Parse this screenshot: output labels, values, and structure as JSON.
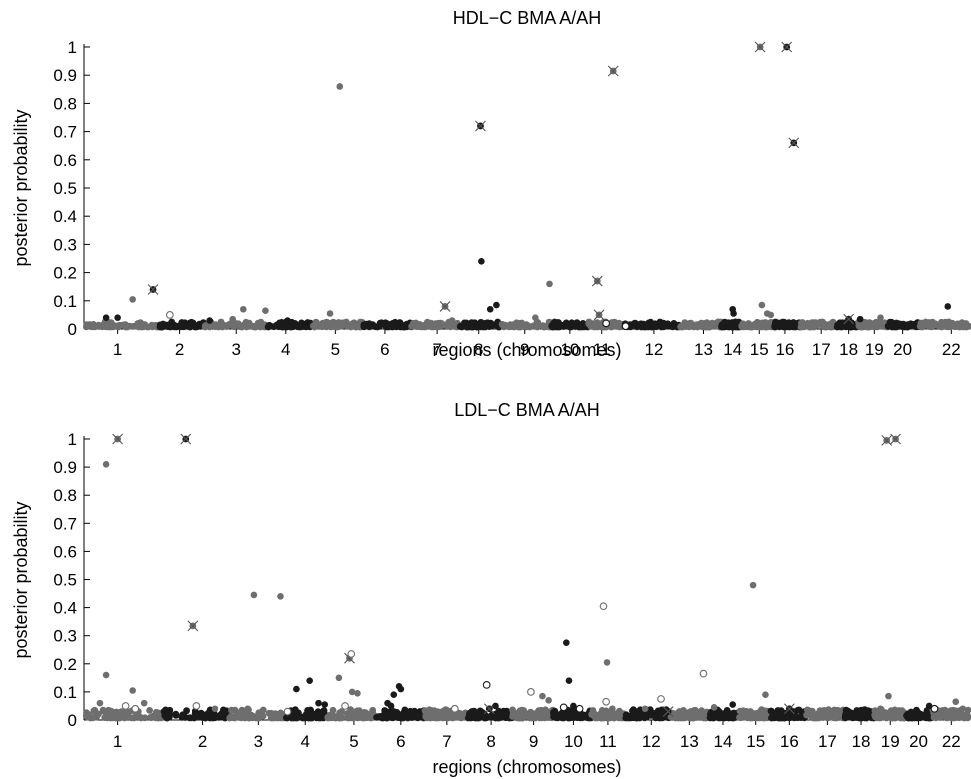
{
  "chart_data": [
    {
      "type": "scatter",
      "title": "HDL−C BMA A/AH",
      "xlabel": "regions (chromosomes)",
      "ylabel": "posterior probability",
      "ylim": [
        0,
        1
      ],
      "yticks": [
        "0",
        "0.1",
        "0.2",
        "0.3",
        "0.4",
        "0.5",
        "0.6",
        "0.7",
        "0.8",
        "0.9",
        "1"
      ],
      "xlim": [
        0,
        1000
      ],
      "chromosomes": {
        "labels": [
          "1",
          "2",
          "3",
          "4",
          "5",
          "6",
          "7",
          "8",
          "9",
          "10",
          "11",
          "12",
          "13",
          "14",
          "15",
          "16",
          "17",
          "18",
          "19",
          "20",
          "22"
        ],
        "label_x": [
          38,
          108,
          172,
          228,
          284,
          340,
          399,
          446,
          498,
          549,
          585,
          644,
          700,
          733,
          763,
          792,
          833,
          864,
          893,
          925,
          980
        ],
        "bounds": [
          0,
          85,
          135,
          208,
          258,
          315,
          370,
          425,
          471,
          528,
          570,
          610,
          673,
          720,
          742,
          780,
          810,
          851,
          875,
          908,
          944,
          1000
        ]
      },
      "color_cycle": [
        "#6e6e6e",
        "#1a1a1a"
      ],
      "background_noise": {
        "n_per_chrom": 60,
        "ymax": 0.018
      },
      "points": [
        {
          "x": 25,
          "y": 0.04,
          "c": 1
        },
        {
          "x": 38,
          "y": 0.04,
          "c": 1
        },
        {
          "x": 55,
          "y": 0.105,
          "c": 0
        },
        {
          "x": 78,
          "y": 0.14,
          "c": 1,
          "m": "x"
        },
        {
          "x": 97,
          "y": 0.05,
          "c": 0,
          "m": "o"
        },
        {
          "x": 142,
          "y": 0.03,
          "c": 1
        },
        {
          "x": 180,
          "y": 0.07,
          "c": 0
        },
        {
          "x": 205,
          "y": 0.065,
          "c": 0
        },
        {
          "x": 168,
          "y": 0.035,
          "c": 0
        },
        {
          "x": 230,
          "y": 0.03,
          "c": 1
        },
        {
          "x": 278,
          "y": 0.055,
          "c": 0
        },
        {
          "x": 289,
          "y": 0.86,
          "c": 0
        },
        {
          "x": 408,
          "y": 0.08,
          "c": 0,
          "m": "x"
        },
        {
          "x": 416,
          "y": 0.03,
          "c": 0
        },
        {
          "x": 448,
          "y": 0.72,
          "c": 1,
          "m": "x"
        },
        {
          "x": 449,
          "y": 0.24,
          "c": 1
        },
        {
          "x": 459,
          "y": 0.07,
          "c": 1
        },
        {
          "x": 466,
          "y": 0.085,
          "c": 1
        },
        {
          "x": 526,
          "y": 0.16,
          "c": 0
        },
        {
          "x": 510,
          "y": 0.04,
          "c": 0
        },
        {
          "x": 580,
          "y": 0.17,
          "c": 0,
          "m": "x"
        },
        {
          "x": 582,
          "y": 0.05,
          "c": 0,
          "m": "x"
        },
        {
          "x": 598,
          "y": 0.915,
          "c": 0,
          "m": "x"
        },
        {
          "x": 590,
          "y": 0.02,
          "c": 1,
          "m": "o"
        },
        {
          "x": 612,
          "y": 0.01,
          "c": 1,
          "m": "o"
        },
        {
          "x": 733,
          "y": 0.07,
          "c": 1
        },
        {
          "x": 734,
          "y": 0.055,
          "c": 1
        },
        {
          "x": 764,
          "y": 1.0,
          "c": 0,
          "m": "x"
        },
        {
          "x": 766,
          "y": 0.085,
          "c": 0
        },
        {
          "x": 772,
          "y": 0.055,
          "c": 0
        },
        {
          "x": 776,
          "y": 0.05,
          "c": 0
        },
        {
          "x": 794,
          "y": 1.0,
          "c": 1,
          "m": "x"
        },
        {
          "x": 802,
          "y": 0.66,
          "c": 1,
          "m": "x"
        },
        {
          "x": 864,
          "y": 0.035,
          "c": 1,
          "m": "x"
        },
        {
          "x": 877,
          "y": 0.035,
          "c": 1
        },
        {
          "x": 900,
          "y": 0.04,
          "c": 0
        },
        {
          "x": 976,
          "y": 0.08,
          "c": 1
        },
        {
          "x": 951,
          "y": 0.025,
          "c": 0
        }
      ]
    },
    {
      "type": "scatter",
      "title": "LDL−C BMA A/AH",
      "xlabel": "regions (chromosomes)",
      "ylabel": "posterior probability",
      "ylim": [
        0,
        1
      ],
      "yticks": [
        "0",
        "0.1",
        "0.2",
        "0.3",
        "0.4",
        "0.5",
        "0.6",
        "0.7",
        "0.8",
        "0.9",
        "1"
      ],
      "xlim": [
        0,
        1000
      ],
      "chromosomes": {
        "labels": [
          "1",
          "2",
          "3",
          "4",
          "5",
          "6",
          "7",
          "8",
          "9",
          "10",
          "11",
          "12",
          "13",
          "14",
          "15",
          "16",
          "17",
          "18",
          "19",
          "20",
          "22"
        ],
        "label_x": [
          38,
          134,
          197,
          250,
          305,
          358,
          410,
          460,
          508,
          553,
          592,
          641,
          684,
          722,
          759,
          797,
          840,
          878,
          911,
          943,
          980
        ],
        "bounds": [
          0,
          90,
          164,
          228,
          275,
          330,
          385,
          434,
          484,
          530,
          573,
          610,
          662,
          705,
          740,
          775,
          815,
          860,
          893,
          929,
          958,
          1000
        ]
      },
      "color_cycle": [
        "#6e6e6e",
        "#1a1a1a"
      ],
      "background_noise": {
        "n_per_chrom": 70,
        "ymax": 0.03
      },
      "points": [
        {
          "x": 25,
          "y": 0.91,
          "c": 0
        },
        {
          "x": 25,
          "y": 0.16,
          "c": 0
        },
        {
          "x": 38,
          "y": 1.0,
          "c": 0,
          "m": "x"
        },
        {
          "x": 47,
          "y": 0.05,
          "c": 0,
          "m": "o"
        },
        {
          "x": 55,
          "y": 0.105,
          "c": 0
        },
        {
          "x": 18,
          "y": 0.06,
          "c": 0
        },
        {
          "x": 68,
          "y": 0.06,
          "c": 0
        },
        {
          "x": 58,
          "y": 0.04,
          "c": 0,
          "m": "o"
        },
        {
          "x": 115,
          "y": 1.0,
          "c": 1,
          "m": "x"
        },
        {
          "x": 123,
          "y": 0.335,
          "c": 0,
          "m": "x"
        },
        {
          "x": 127,
          "y": 0.05,
          "c": 0,
          "m": "o"
        },
        {
          "x": 148,
          "y": 0.04,
          "c": 0
        },
        {
          "x": 192,
          "y": 0.445,
          "c": 0
        },
        {
          "x": 222,
          "y": 0.44,
          "c": 0
        },
        {
          "x": 185,
          "y": 0.04,
          "c": 0
        },
        {
          "x": 230,
          "y": 0.03,
          "c": 0,
          "m": "o"
        },
        {
          "x": 240,
          "y": 0.11,
          "c": 1
        },
        {
          "x": 255,
          "y": 0.14,
          "c": 1
        },
        {
          "x": 265,
          "y": 0.06,
          "c": 1
        },
        {
          "x": 272,
          "y": 0.055,
          "c": 1
        },
        {
          "x": 288,
          "y": 0.15,
          "c": 0
        },
        {
          "x": 300,
          "y": 0.22,
          "c": 0,
          "m": "x"
        },
        {
          "x": 302,
          "y": 0.235,
          "c": 0,
          "m": "o"
        },
        {
          "x": 303,
          "y": 0.1,
          "c": 0
        },
        {
          "x": 309,
          "y": 0.095,
          "c": 0
        },
        {
          "x": 295,
          "y": 0.05,
          "c": 0,
          "m": "o"
        },
        {
          "x": 343,
          "y": 0.06,
          "c": 1
        },
        {
          "x": 356,
          "y": 0.12,
          "c": 1
        },
        {
          "x": 358,
          "y": 0.11,
          "c": 1
        },
        {
          "x": 350,
          "y": 0.09,
          "c": 1
        },
        {
          "x": 347,
          "y": 0.05,
          "c": 1
        },
        {
          "x": 419,
          "y": 0.04,
          "c": 0,
          "m": "o"
        },
        {
          "x": 455,
          "y": 0.125,
          "c": 1,
          "m": "o"
        },
        {
          "x": 458,
          "y": 0.04,
          "c": 1,
          "m": "x"
        },
        {
          "x": 465,
          "y": 0.05,
          "c": 1
        },
        {
          "x": 505,
          "y": 0.1,
          "c": 0,
          "m": "o"
        },
        {
          "x": 518,
          "y": 0.085,
          "c": 0
        },
        {
          "x": 525,
          "y": 0.07,
          "c": 0
        },
        {
          "x": 545,
          "y": 0.275,
          "c": 1
        },
        {
          "x": 548,
          "y": 0.14,
          "c": 1
        },
        {
          "x": 542,
          "y": 0.045,
          "c": 1,
          "m": "o"
        },
        {
          "x": 560,
          "y": 0.04,
          "c": 1,
          "m": "o"
        },
        {
          "x": 553,
          "y": 0.05,
          "c": 1
        },
        {
          "x": 587,
          "y": 0.405,
          "c": 0,
          "m": "o"
        },
        {
          "x": 591,
          "y": 0.205,
          "c": 0
        },
        {
          "x": 590,
          "y": 0.065,
          "c": 0,
          "m": "o"
        },
        {
          "x": 597,
          "y": 0.04,
          "c": 0
        },
        {
          "x": 652,
          "y": 0.075,
          "c": 0,
          "m": "o"
        },
        {
          "x": 634,
          "y": 0.04,
          "c": 0
        },
        {
          "x": 660,
          "y": 0.03,
          "c": 1,
          "m": "x"
        },
        {
          "x": 700,
          "y": 0.165,
          "c": 0,
          "m": "o"
        },
        {
          "x": 712,
          "y": 0.045,
          "c": 0
        },
        {
          "x": 733,
          "y": 0.055,
          "c": 1
        },
        {
          "x": 756,
          "y": 0.48,
          "c": 0
        },
        {
          "x": 770,
          "y": 0.09,
          "c": 0
        },
        {
          "x": 797,
          "y": 0.04,
          "c": 1,
          "m": "x"
        },
        {
          "x": 907,
          "y": 0.995,
          "c": 0,
          "m": "x"
        },
        {
          "x": 917,
          "y": 1.0,
          "c": 0,
          "m": "x"
        },
        {
          "x": 909,
          "y": 0.085,
          "c": 0
        },
        {
          "x": 900,
          "y": 0.04,
          "c": 0
        },
        {
          "x": 913,
          "y": 0.03,
          "c": 0
        },
        {
          "x": 961,
          "y": 0.04,
          "c": 1,
          "m": "o"
        },
        {
          "x": 955,
          "y": 0.05,
          "c": 1
        },
        {
          "x": 985,
          "y": 0.065,
          "c": 0
        },
        {
          "x": 993,
          "y": 0.04,
          "c": 0
        }
      ]
    }
  ]
}
